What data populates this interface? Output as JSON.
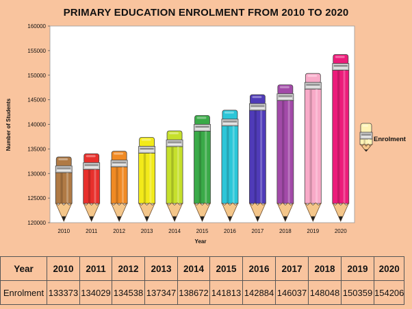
{
  "chart_data": {
    "type": "bar",
    "title": "PRIMARY EDUCATION ENROLMENT FROM 2010 TO 2020",
    "xlabel": "Year",
    "ylabel": "Number of Students",
    "ylim": [
      120000,
      160000
    ],
    "yticks": [
      120000,
      125000,
      130000,
      135000,
      140000,
      145000,
      150000,
      155000,
      160000
    ],
    "categories": [
      "2010",
      "2011",
      "2012",
      "2013",
      "2014",
      "2015",
      "2016",
      "2017",
      "2018",
      "2019",
      "2020"
    ],
    "series": [
      {
        "name": "Enrolment",
        "values": [
          133373,
          134029,
          134538,
          137347,
          138672,
          141813,
          142884,
          146037,
          148048,
          150359,
          154206
        ]
      }
    ],
    "legend": {
      "label": "Enrolment",
      "position": "right"
    },
    "bar_colors": [
      "#b07a45",
      "#e8302c",
      "#f08a24",
      "#f2ea1a",
      "#c6e02c",
      "#3aaa48",
      "#2cc6d8",
      "#4f3bb8",
      "#a24aa8",
      "#f8aac8",
      "#ec1c7a"
    ]
  },
  "table": {
    "header_label": "Year",
    "row_label": "Enrolment"
  }
}
